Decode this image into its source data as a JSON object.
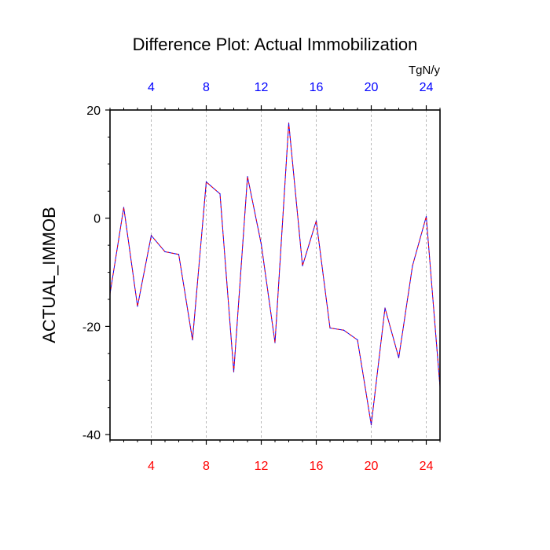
{
  "chart_data": {
    "type": "line",
    "title": "Difference Plot: Actual Immobilization",
    "ylabel": "ACTUAL_IMMOB",
    "units": "TgN/y",
    "x": [
      1,
      2,
      3,
      4,
      5,
      6,
      7,
      8,
      9,
      10,
      11,
      12,
      13,
      14,
      15,
      16,
      17,
      18,
      19,
      20,
      21,
      22,
      23,
      24,
      25
    ],
    "series": [
      {
        "name": "ACTUAL_IMMOB difference",
        "color": "#0000ff",
        "overlay_color": "#ff0000",
        "values": [
          -14,
          2,
          -16.3,
          -3.2,
          -6.2,
          -6.7,
          -22.5,
          6.7,
          4.5,
          -28.4,
          7.7,
          -4.8,
          -23,
          17.6,
          -8.8,
          -0.5,
          -20.3,
          -20.7,
          -22.5,
          -38.2,
          -16.6,
          -25.8,
          -8.8,
          0.3,
          -31.2
        ]
      }
    ],
    "xlim": [
      1,
      25
    ],
    "ylim": [
      -41,
      20
    ],
    "xticks_top": [
      "4",
      "8",
      "12",
      "16",
      "20",
      "24"
    ],
    "xticks_bottom": [
      "4",
      "8",
      "12",
      "16",
      "20",
      "24"
    ],
    "xtick_values": [
      4,
      8,
      12,
      16,
      20,
      24
    ],
    "yticks": [
      "20",
      "0",
      "-20",
      "-40"
    ],
    "ytick_values": [
      20,
      0,
      -20,
      -40
    ],
    "vertical_gridlines": true,
    "top_axis_color": "#0000ff",
    "bottom_axis_color": "#ff0000"
  }
}
